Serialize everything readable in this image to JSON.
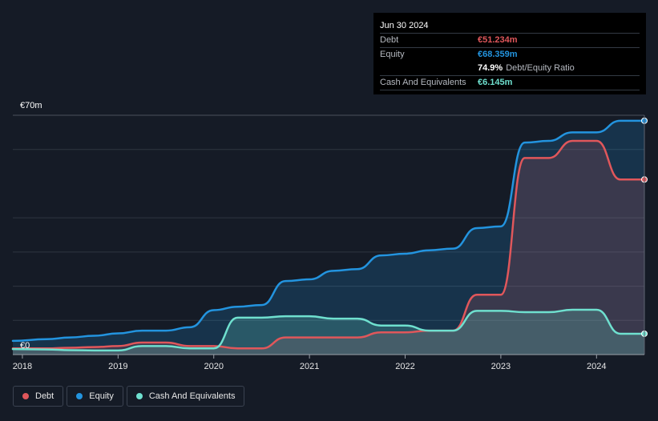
{
  "tooltip": {
    "date": "Jun 30 2024",
    "debt_label": "Debt",
    "debt_value": "€51.234m",
    "equity_label": "Equity",
    "equity_value": "€68.359m",
    "ratio_value": "74.9%",
    "ratio_label": "Debt/Equity Ratio",
    "cash_label": "Cash And Equivalents",
    "cash_value": "€6.145m"
  },
  "legend": {
    "debt": "Debt",
    "equity": "Equity",
    "cash": "Cash And Equivalents"
  },
  "colors": {
    "debt": "#e0575b",
    "equity": "#2394df",
    "cash": "#6fe0cf",
    "background": "#151b26",
    "grid": "#2f3641"
  },
  "chart_data": {
    "type": "area",
    "y_top_label": "€70m",
    "y_bottom_label": "€0",
    "ylim": [
      0,
      70
    ],
    "xlim": [
      2017.9,
      2024.5
    ],
    "x_ticks": [
      {
        "value": 2018,
        "label": "2018"
      },
      {
        "value": 2019,
        "label": "2019"
      },
      {
        "value": 2020,
        "label": "2020"
      },
      {
        "value": 2021,
        "label": "2021"
      },
      {
        "value": 2022,
        "label": "2022"
      },
      {
        "value": 2023,
        "label": "2023"
      },
      {
        "value": 2024,
        "label": "2024"
      }
    ],
    "grid_values": [
      10,
      20,
      30,
      40,
      60,
      70
    ],
    "series": [
      {
        "name": "Equity",
        "key": "equity",
        "x": [
          2017.9,
          2018.25,
          2018.5,
          2018.75,
          2019.0,
          2019.25,
          2019.5,
          2019.75,
          2020.0,
          2020.25,
          2020.5,
          2020.75,
          2021.0,
          2021.25,
          2021.5,
          2021.75,
          2022.0,
          2022.25,
          2022.5,
          2022.75,
          2023.0,
          2023.25,
          2023.5,
          2023.75,
          2024.0,
          2024.25,
          2024.5
        ],
        "values": [
          4.0,
          4.5,
          5.0,
          5.5,
          6.2,
          7.0,
          7.0,
          8.0,
          13.0,
          14.0,
          14.5,
          21.5,
          22.0,
          24.5,
          25.0,
          29.0,
          29.5,
          30.5,
          31.0,
          37.0,
          37.5,
          62.0,
          62.5,
          65.0,
          65.0,
          68.4,
          68.4
        ]
      },
      {
        "name": "Debt",
        "key": "debt",
        "x": [
          2017.9,
          2018.25,
          2018.5,
          2018.75,
          2019.0,
          2019.25,
          2019.5,
          2019.75,
          2020.0,
          2020.25,
          2020.5,
          2020.75,
          2021.0,
          2021.25,
          2021.5,
          2021.75,
          2022.0,
          2022.25,
          2022.5,
          2022.75,
          2023.0,
          2023.25,
          2023.5,
          2023.75,
          2024.0,
          2024.25,
          2024.5
        ],
        "values": [
          1.8,
          1.8,
          2.0,
          2.2,
          2.5,
          3.5,
          3.5,
          2.5,
          2.5,
          1.8,
          1.8,
          5.0,
          5.0,
          5.0,
          5.0,
          6.5,
          6.5,
          7.0,
          7.0,
          17.5,
          17.5,
          57.5,
          57.5,
          62.5,
          62.5,
          51.2,
          51.2
        ]
      },
      {
        "name": "Cash And Equivalents",
        "key": "cash",
        "x": [
          2017.9,
          2018.25,
          2018.5,
          2018.75,
          2019.0,
          2019.25,
          2019.5,
          2019.75,
          2020.0,
          2020.25,
          2020.5,
          2020.75,
          2021.0,
          2021.25,
          2021.5,
          2021.75,
          2022.0,
          2022.25,
          2022.5,
          2022.75,
          2023.0,
          2023.25,
          2023.5,
          2023.75,
          2024.0,
          2024.25,
          2024.5
        ],
        "values": [
          1.6,
          1.5,
          1.3,
          1.2,
          1.2,
          2.5,
          2.5,
          1.8,
          1.8,
          10.8,
          10.8,
          11.2,
          11.2,
          10.5,
          10.5,
          8.5,
          8.5,
          7.0,
          7.0,
          12.8,
          12.8,
          12.4,
          12.4,
          13.1,
          13.1,
          6.1,
          6.1
        ]
      }
    ]
  }
}
